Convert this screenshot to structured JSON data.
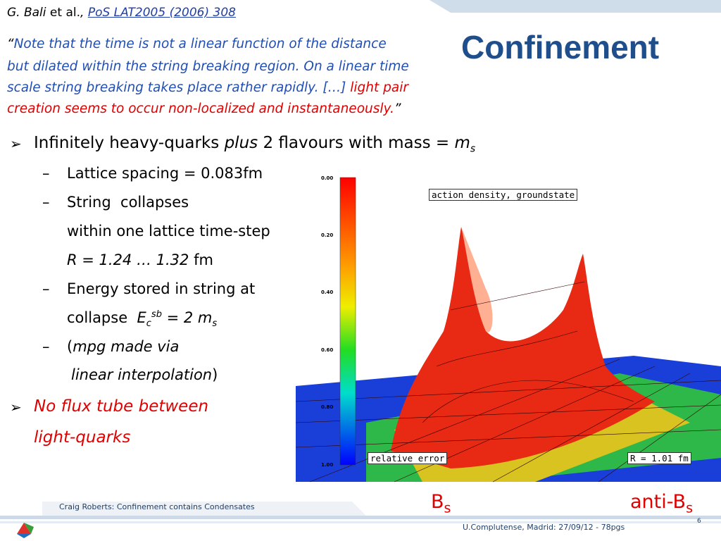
{
  "header": {
    "citation": {
      "author": "G. Bali",
      "etal": "et al.",
      "comma": ",",
      "link": "PoS LAT2005 (2006) 308"
    },
    "title": "Confinement"
  },
  "quote": {
    "open": "“",
    "text": [
      "Note that the time is not a linear function of the distance",
      "but dilated within the string breaking region. On a linear time",
      "scale string breaking takes place rather rapidly. […]"
    ],
    "highlight": [
      "light pair",
      "creation seems to occur non-localized and instantaneously."
    ],
    "close": "”"
  },
  "bullets": [
    {
      "text": "Infinitely heavy-quarks ",
      "emph": "plus",
      "text2": " 2 flavours with mass = ",
      "var": "m",
      "sub": "s",
      "items": [
        {
          "text": "Lattice spacing = 0.083fm"
        },
        {
          "lines": [
            "String  collapses",
            "within one lattice time-step"
          ],
          "range": "R = 1.24 … 1.32",
          "unit": " fm"
        },
        {
          "line": "Energy stored in string at",
          "text": "collapse  ",
          "var": "E",
          "sub": "c",
          "sup": "sb",
          "eq": " = 2 m",
          "sub2": "s"
        },
        {
          "open": "(",
          "emph": "mpg made via",
          "emph2": "linear interpolation",
          "close": ")"
        }
      ]
    },
    {
      "lines": [
        "No flux tube between",
        "light-quarks"
      ]
    }
  ],
  "figure": {
    "colorbar_ticks": [
      "0.00",
      "0.20",
      "0.40",
      "0.60",
      "0.80",
      "1.00"
    ],
    "top_label": "action density, groundstate",
    "bottom_label": "relative error",
    "r_label": "R = 1.01 fm",
    "labels": [
      {
        "text": "B",
        "sub": "s"
      },
      {
        "text": "anti-B",
        "sub": "s"
      }
    ]
  },
  "footer": {
    "left": "Craig Roberts: Confinement contains Condensates",
    "right": "U.Complutense, Madrid: 27/09/12 - 78pgs",
    "page": "6"
  }
}
